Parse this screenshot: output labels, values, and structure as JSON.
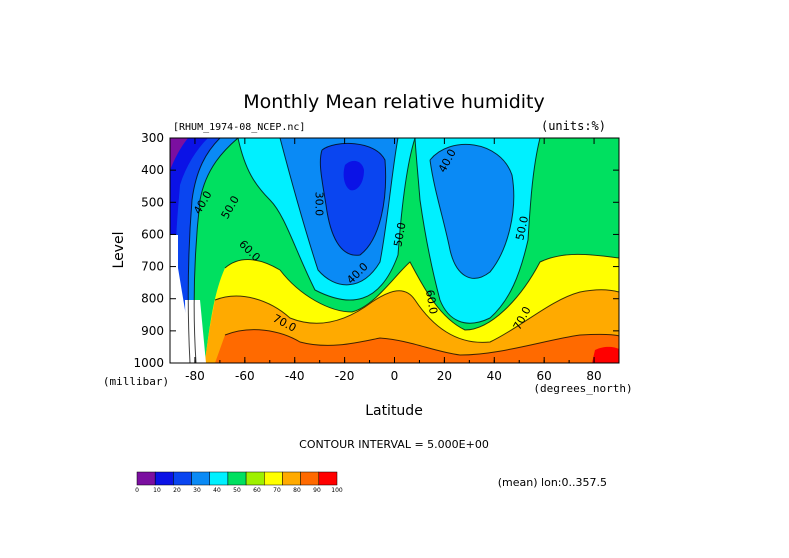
{
  "chart_data": {
    "type": "heatmap",
    "title": "Monthly Mean relative humidity",
    "dataset_label": "[RHUM_1974-08_NCEP.nc]",
    "units_label": "(units:%)",
    "xlabel": "Latitude",
    "x_units": "(degrees_north)",
    "ylabel": "Level",
    "y_units": "(millibar)",
    "xlim": [
      -90,
      90
    ],
    "ylim": [
      1000,
      300
    ],
    "x_ticks": [
      -80,
      -60,
      -40,
      -20,
      0,
      20,
      40,
      60,
      80
    ],
    "y_ticks": [
      300,
      400,
      500,
      600,
      700,
      800,
      900,
      1000
    ],
    "contour_interval_text": "CONTOUR INTERVAL = 5.000E+00",
    "mean_note": "(mean) lon:0..357.5",
    "colorbar": {
      "ticks": [
        "0",
        "10",
        "20",
        "30",
        "40",
        "50",
        "60",
        "70",
        "80",
        "90",
        "100"
      ],
      "colors": [
        "#7b0fa0",
        "#0b12e6",
        "#0a45f0",
        "#0a8af5",
        "#00f0ff",
        "#00e060",
        "#9ef000",
        "#ffff00",
        "#ffaa00",
        "#ff6a00",
        "#ff0000"
      ]
    },
    "contour_labels": [
      {
        "text": "40.0",
        "lat": -77,
        "lev": 500,
        "rot": -60
      },
      {
        "text": "50.0",
        "lat": -66,
        "lev": 515,
        "rot": -60
      },
      {
        "text": "60.0",
        "lat": -58,
        "lev": 650,
        "rot": 45
      },
      {
        "text": "70.0",
        "lat": -44,
        "lev": 875,
        "rot": 28
      },
      {
        "text": "30.0",
        "lat": -30,
        "lev": 505,
        "rot": 90
      },
      {
        "text": "40.0",
        "lat": -15,
        "lev": 720,
        "rot": -45
      },
      {
        "text": "50.0",
        "lat": 2,
        "lev": 600,
        "rot": -80
      },
      {
        "text": "60.0",
        "lat": 15,
        "lev": 810,
        "rot": 80
      },
      {
        "text": "40.0",
        "lat": 21,
        "lev": 370,
        "rot": -62
      },
      {
        "text": "50.0",
        "lat": 51,
        "lev": 580,
        "rot": -78
      },
      {
        "text": "70.0",
        "lat": 51,
        "lev": 860,
        "rot": -62
      }
    ],
    "grid": false
  }
}
